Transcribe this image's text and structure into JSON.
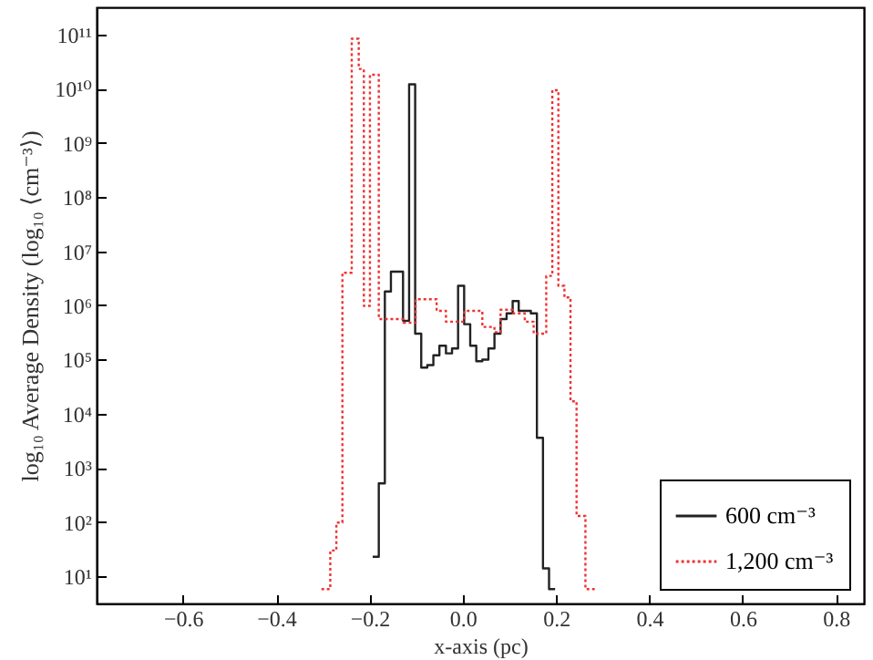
{
  "chart_data": {
    "type": "step",
    "xlabel": "x-axis (pc)",
    "ylabel": "log₁₀ Average Density (log₁₀ ⟨cm⁻³⟩)",
    "log": "y",
    "grid": false,
    "legend": "bottom right",
    "marker": "none",
    "xlim": [
      -0.785,
      0.86
    ],
    "xticks": [
      {
        "value": -0.6,
        "label": "−0.6"
      },
      {
        "value": -0.4,
        "label": "−0.4"
      },
      {
        "value": -0.2,
        "label": "−0.2"
      },
      {
        "value": 0,
        "label": "0.0"
      },
      0.2,
      0.4,
      0.6,
      0.8
    ],
    "ylim": [
      3.16,
      316000000000.0
    ],
    "yticks": [
      {
        "value": 10,
        "label": "10¹"
      },
      {
        "value": 100,
        "label": "10²"
      },
      {
        "value": 1000,
        "label": "10³"
      },
      {
        "value": 10000,
        "label": "10⁴"
      },
      {
        "value": 100000,
        "label": "10⁵"
      },
      {
        "value": 1000000,
        "label": "10⁶"
      },
      {
        "value": 10000000,
        "label": "10⁷"
      },
      {
        "value": 100000000,
        "label": "10⁸"
      },
      {
        "value": 1000000000,
        "label": "10⁹"
      },
      {
        "value": 10000000000,
        "label": "10¹⁰"
      },
      {
        "value": 100000000000,
        "label": "10¹¹"
      }
    ],
    "series": [
      {
        "name": "600 cm⁻³",
        "color": "#222222",
        "line_style": "solid",
        "x": [
          -0.193,
          -0.18,
          -0.167,
          -0.154,
          -0.141,
          -0.128,
          -0.115,
          -0.102,
          -0.089,
          -0.076,
          -0.063,
          -0.05,
          -0.036,
          -0.023,
          -0.01,
          0.003,
          0.016,
          0.029,
          0.042,
          0.055,
          0.068,
          0.081,
          0.094,
          0.107,
          0.12,
          0.133,
          0.146,
          0.159,
          0.172,
          0.185,
          0.198
        ],
        "values": [
          23,
          520,
          1800000.0,
          4200000.0,
          4200000.0,
          520000.0,
          12000000000.0,
          300000.0,
          71000.0,
          79000.0,
          120000.0,
          180000.0,
          130000.0,
          160000.0,
          2300000.0,
          450000.0,
          180000.0,
          93000.0,
          100000.0,
          160000.0,
          300000.0,
          560000.0,
          710000.0,
          1200000.0,
          790000.0,
          790000.0,
          710000.0,
          3600,
          14,
          5.8,
          5.8
        ]
      },
      {
        "name": "1,200 cm⁻³",
        "color": "#ee3333",
        "line_style": "dotted",
        "x": [
          -0.303,
          -0.284,
          -0.271,
          -0.258,
          -0.238,
          -0.223,
          -0.212,
          -0.199,
          -0.18,
          -0.127,
          -0.101,
          -0.056,
          -0.036,
          0.003,
          0.042,
          0.068,
          0.081,
          0.107,
          0.133,
          0.152,
          0.179,
          0.192,
          0.205,
          0.218,
          0.231,
          0.244,
          0.263,
          0.283
        ],
        "values": [
          5.8,
          30,
          98,
          4000000.0,
          83000000000.0,
          23000000000.0,
          980000.0,
          18000000000.0,
          560000.0,
          480000.0,
          1300000.0,
          790000.0,
          500000.0,
          790000.0,
          400000.0,
          320000.0,
          830000.0,
          710000.0,
          500000.0,
          300000.0,
          3500000.0,
          9300000000.0,
          2300000.0,
          1400000.0,
          17000.0,
          130,
          5.8,
          5.8
        ]
      }
    ]
  }
}
